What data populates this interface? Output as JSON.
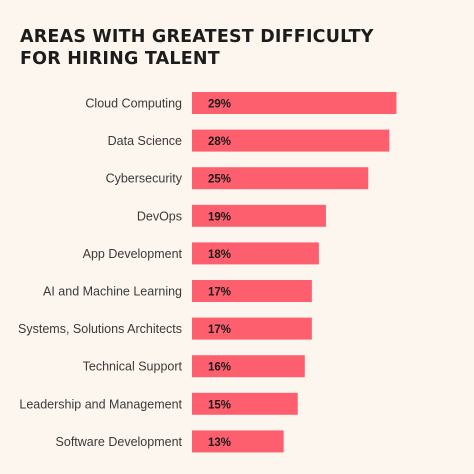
{
  "title_lines": [
    "AREAS WITH GREATEST DIFFICULTY",
    "FOR HIRING TALENT"
  ],
  "colors": {
    "background": "#fdf6ee",
    "bar": "#fe5f6f",
    "title": "#1c1c1c"
  },
  "chart_data": {
    "type": "bar",
    "orientation": "horizontal",
    "title": "AREAS WITH GREATEST DIFFICULTY FOR HIRING TALENT",
    "xlabel": "",
    "ylabel": "",
    "grid": false,
    "categories": [
      "Cloud Computing",
      "Data Science",
      "Cybersecurity",
      "DevOps",
      "App Development",
      "AI and Machine Learning",
      "Systems, Solutions Architects",
      "Technical Support",
      "Leadership and Management",
      "Software Development"
    ],
    "values": [
      29,
      28,
      25,
      19,
      18,
      17,
      17,
      16,
      15,
      13
    ],
    "value_labels": [
      "29%",
      "28%",
      "25%",
      "19%",
      "18%",
      "17%",
      "17%",
      "16%",
      "15%",
      "13%"
    ],
    "unit": "%"
  }
}
